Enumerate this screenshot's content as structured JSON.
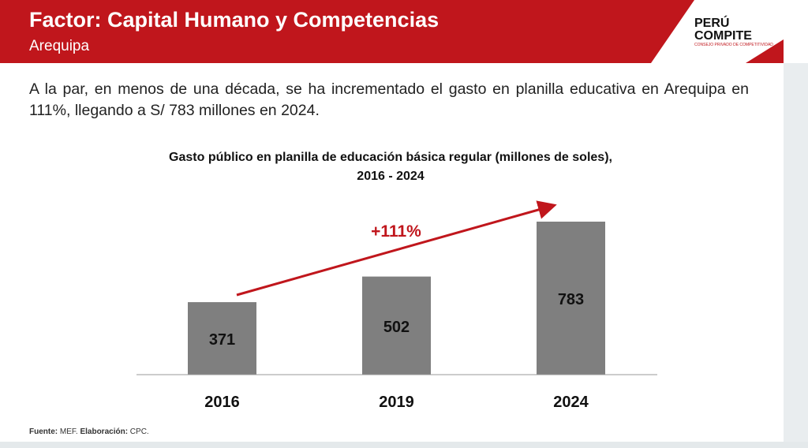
{
  "header": {
    "title": "Factor: Capital Humano y Competencias",
    "subtitle": "Arequipa",
    "logo_line1": "PERÚ",
    "logo_line2": "COMPITE",
    "logo_tag": "CONSEJO PRIVADO DE COMPETITIVIDAD"
  },
  "lead_text": "A la par, en menos de una década, se ha incrementado el gasto en planilla educativa en Arequipa en 111%, llegando a S/ 783 millones en 2024.",
  "chart_data": {
    "type": "bar",
    "title_line1": "Gasto público en planilla de educación básica regular (millones de soles),",
    "title_line2": "2016 - 2024",
    "categories": [
      "2016",
      "2019",
      "2024"
    ],
    "values": [
      371,
      502,
      783
    ],
    "ylim": [
      0,
      783
    ],
    "annotation": "+111%",
    "bar_color": "#7f7f7f",
    "accent": "#c0161c"
  },
  "footer": {
    "source_label": "Fuente:",
    "source": " MEF. ",
    "elab_label": "Elaboración:",
    "elab": " CPC."
  }
}
